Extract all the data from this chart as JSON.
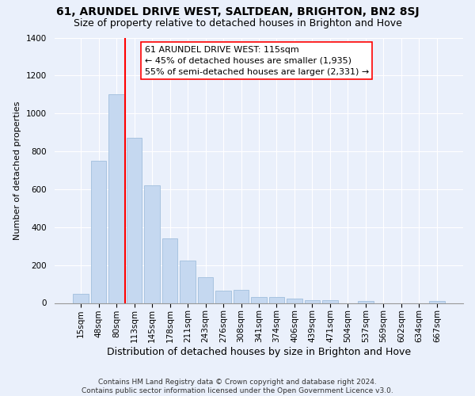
{
  "title": "61, ARUNDEL DRIVE WEST, SALTDEAN, BRIGHTON, BN2 8SJ",
  "subtitle": "Size of property relative to detached houses in Brighton and Hove",
  "xlabel": "Distribution of detached houses by size in Brighton and Hove",
  "ylabel": "Number of detached properties",
  "categories": [
    "15sqm",
    "48sqm",
    "80sqm",
    "113sqm",
    "145sqm",
    "178sqm",
    "211sqm",
    "243sqm",
    "276sqm",
    "308sqm",
    "341sqm",
    "374sqm",
    "406sqm",
    "439sqm",
    "471sqm",
    "504sqm",
    "537sqm",
    "569sqm",
    "602sqm",
    "634sqm",
    "667sqm"
  ],
  "values": [
    50,
    750,
    1100,
    870,
    620,
    340,
    225,
    135,
    65,
    70,
    30,
    30,
    25,
    15,
    15,
    0,
    12,
    0,
    0,
    0,
    12
  ],
  "bar_color": "#c5d8f0",
  "bar_edge_color": "#a8c4e0",
  "vline_color": "red",
  "vline_x_index": 3,
  "annotation_line1": "61 ARUNDEL DRIVE WEST: 115sqm",
  "annotation_line2": "← 45% of detached houses are smaller (1,935)",
  "annotation_line3": "55% of semi-detached houses are larger (2,331) →",
  "annotation_box_color": "white",
  "annotation_box_edge": "red",
  "ylim": [
    0,
    1400
  ],
  "yticks": [
    0,
    200,
    400,
    600,
    800,
    1000,
    1200,
    1400
  ],
  "footnote": "Contains HM Land Registry data © Crown copyright and database right 2024.\nContains public sector information licensed under the Open Government Licence v3.0.",
  "bg_color": "#eaf0fb",
  "title_fontsize": 10,
  "subtitle_fontsize": 9,
  "xlabel_fontsize": 9,
  "ylabel_fontsize": 8,
  "tick_fontsize": 7.5,
  "annotation_fontsize": 8,
  "footnote_fontsize": 6.5
}
